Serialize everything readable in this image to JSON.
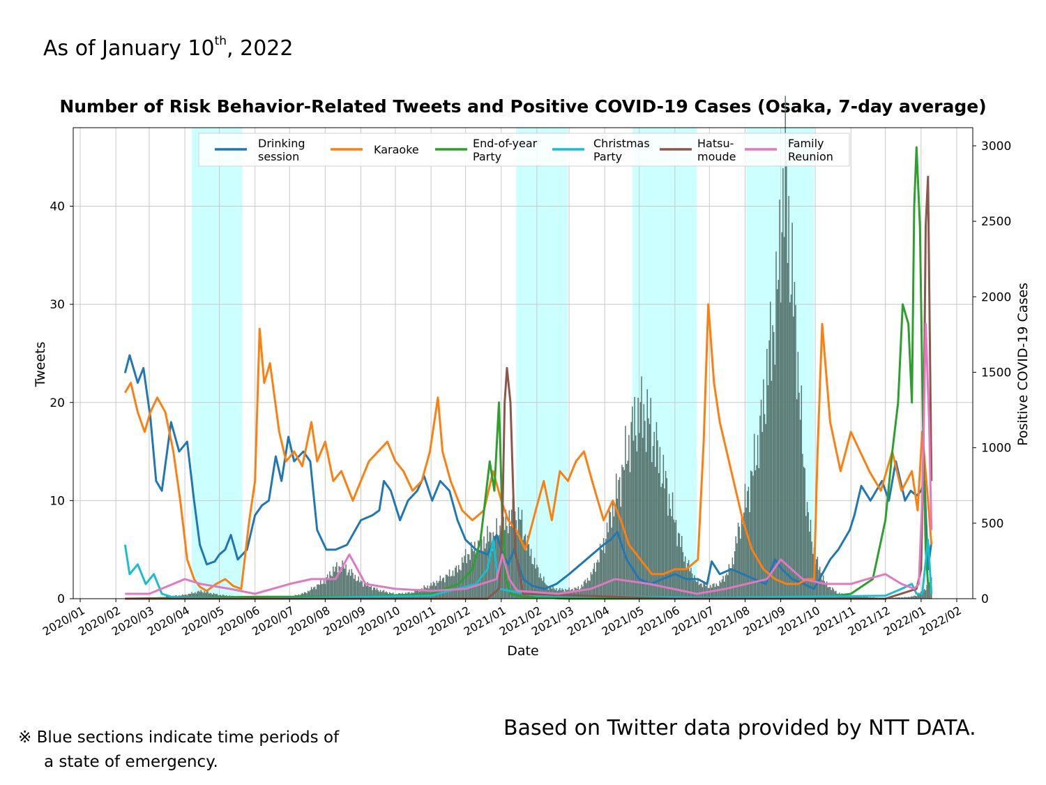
{
  "as_of": {
    "prefix": "As of January 10",
    "sup": "th",
    "suffix": ", 2022"
  },
  "note": {
    "mark": "※",
    "line1": "Blue sections indicate time periods of",
    "line2": "a state of emergency."
  },
  "credit": "Based on Twitter data provided by NTT DATA.",
  "colors": {
    "emergency_band": "#ccffff",
    "cases_bar": "#56756f",
    "grid": "#c8c8c8"
  },
  "chart_data": {
    "type": "line",
    "title": "Number of Risk Behavior-Related Tweets and Positive COVID-19 Cases (Osaka, 7-day average)",
    "xlabel": "Date",
    "ylabel": "Tweets",
    "y2label": "Positive COVID-19 Cases",
    "x_range": [
      "2020-01-01",
      "2022-02-01"
    ],
    "ylim": [
      0,
      48
    ],
    "y2lim": [
      0,
      3120
    ],
    "yticks": [
      0,
      10,
      20,
      30,
      40
    ],
    "y2ticks": [
      0,
      500,
      1000,
      1500,
      2000,
      2500,
      3000
    ],
    "x_tick_labels": [
      "2020/01",
      "2020/02",
      "2020/03",
      "2020/04",
      "2020/05",
      "2020/06",
      "2020/07",
      "2020/08",
      "2020/09",
      "2020/10",
      "2020/11",
      "2020/12",
      "2021/01",
      "2021/02",
      "2021/03",
      "2021/04",
      "2021/05",
      "2021/06",
      "2021/07",
      "2021/08",
      "2021/09",
      "2021/10",
      "2021/11",
      "2021/12",
      "2022/01",
      "2022/02"
    ],
    "x_tick_dates": [
      "2020-01-01",
      "2020-02-01",
      "2020-03-01",
      "2020-04-01",
      "2020-05-01",
      "2020-06-01",
      "2020-07-01",
      "2020-08-01",
      "2020-09-01",
      "2020-10-01",
      "2020-11-01",
      "2020-12-01",
      "2021-01-01",
      "2021-02-01",
      "2021-03-01",
      "2021-04-01",
      "2021-05-01",
      "2021-06-01",
      "2021-07-01",
      "2021-08-01",
      "2021-09-01",
      "2021-10-01",
      "2021-11-01",
      "2021-12-01",
      "2022-01-01",
      "2022-02-01"
    ],
    "grid": true,
    "legend_position": "top",
    "emergency_periods": [
      [
        "2020-04-07",
        "2020-05-21"
      ],
      [
        "2021-01-14",
        "2021-02-28"
      ],
      [
        "2021-04-25",
        "2021-06-20"
      ],
      [
        "2021-08-02",
        "2021-09-30"
      ]
    ],
    "series": [
      {
        "name": "Drinking session",
        "color": "#1f77b4",
        "x": [
          "2020-02-09",
          "2020-02-13",
          "2020-02-20",
          "2020-02-25",
          "2020-03-02",
          "2020-03-07",
          "2020-03-12",
          "2020-03-20",
          "2020-03-27",
          "2020-04-03",
          "2020-04-09",
          "2020-04-14",
          "2020-04-20",
          "2020-04-27",
          "2020-05-01",
          "2020-05-06",
          "2020-05-11",
          "2020-05-17",
          "2020-05-25",
          "2020-06-01",
          "2020-06-07",
          "2020-06-13",
          "2020-06-19",
          "2020-06-24",
          "2020-06-30",
          "2020-07-05",
          "2020-07-13",
          "2020-07-19",
          "2020-07-25",
          "2020-08-02",
          "2020-08-10",
          "2020-08-20",
          "2020-09-01",
          "2020-09-11",
          "2020-09-17",
          "2020-09-21",
          "2020-09-27",
          "2020-10-05",
          "2020-10-12",
          "2020-10-20",
          "2020-10-26",
          "2020-11-02",
          "2020-11-09",
          "2020-11-17",
          "2020-11-24",
          "2020-12-01",
          "2020-12-10",
          "2020-12-20",
          "2020-12-28",
          "2021-01-01",
          "2021-01-07",
          "2021-01-12",
          "2021-01-20",
          "2021-01-28",
          "2021-02-08",
          "2021-02-18",
          "2021-03-01",
          "2021-03-11",
          "2021-03-21",
          "2021-03-31",
          "2021-04-06",
          "2021-04-12",
          "2021-04-20",
          "2021-05-01",
          "2021-05-11",
          "2021-05-21",
          "2021-06-01",
          "2021-06-11",
          "2021-06-21",
          "2021-06-29",
          "2021-07-03",
          "2021-07-10",
          "2021-07-20",
          "2021-07-30",
          "2021-08-09",
          "2021-08-19",
          "2021-08-27",
          "2021-09-02",
          "2021-09-11",
          "2021-09-21",
          "2021-09-30",
          "2021-10-07",
          "2021-10-14",
          "2021-10-21",
          "2021-10-31",
          "2021-11-04",
          "2021-11-10",
          "2021-11-18",
          "2021-11-28",
          "2021-12-04",
          "2021-12-10",
          "2021-12-18",
          "2021-12-23",
          "2021-12-28",
          "2022-01-01",
          "2022-01-04",
          "2022-01-07",
          "2022-01-10"
        ],
        "values": [
          23,
          24.8,
          22,
          23.5,
          18.5,
          12,
          11,
          18,
          15,
          16,
          10,
          5.5,
          3.5,
          3.8,
          4.5,
          5,
          6.5,
          4,
          5,
          8.5,
          9.5,
          10,
          14.5,
          12,
          16.5,
          14,
          15,
          14,
          7,
          5,
          5,
          5.5,
          8,
          8.5,
          9,
          12,
          11,
          8,
          10,
          11,
          12.5,
          10,
          12,
          11,
          8,
          6,
          5,
          4.5,
          6.5,
          5,
          3.5,
          5,
          2,
          1.3,
          1,
          1.5,
          2.5,
          3.5,
          4.5,
          5.5,
          6,
          6.8,
          4,
          2,
          1.5,
          2,
          2.5,
          2,
          2,
          1.5,
          3.8,
          2.5,
          3,
          2.5,
          2,
          1.5,
          4,
          3,
          2,
          1.5,
          1,
          2.5,
          4,
          5,
          7,
          8.5,
          11.5,
          10,
          12,
          10,
          14,
          10,
          11,
          10.5,
          11,
          12,
          3,
          5.8
        ]
      },
      {
        "name": "Karaoke",
        "color": "#ff7f0e",
        "x": [
          "2020-02-09",
          "2020-02-14",
          "2020-02-20",
          "2020-02-26",
          "2020-03-02",
          "2020-03-08",
          "2020-03-15",
          "2020-03-22",
          "2020-03-28",
          "2020-04-03",
          "2020-04-09",
          "2020-04-14",
          "2020-04-20",
          "2020-04-28",
          "2020-05-06",
          "2020-05-13",
          "2020-05-20",
          "2020-05-27",
          "2020-06-01",
          "2020-06-05",
          "2020-06-09",
          "2020-06-14",
          "2020-06-22",
          "2020-06-28",
          "2020-07-05",
          "2020-07-12",
          "2020-07-20",
          "2020-07-25",
          "2020-08-01",
          "2020-08-08",
          "2020-08-15",
          "2020-08-25",
          "2020-09-01",
          "2020-09-08",
          "2020-09-16",
          "2020-09-24",
          "2020-10-01",
          "2020-10-08",
          "2020-10-16",
          "2020-10-24",
          "2020-10-31",
          "2020-11-07",
          "2020-11-11",
          "2020-11-18",
          "2020-11-28",
          "2020-12-07",
          "2020-12-17",
          "2020-12-25",
          "2021-01-01",
          "2021-01-07",
          "2021-01-14",
          "2021-01-22",
          "2021-01-31",
          "2021-02-07",
          "2021-02-14",
          "2021-02-21",
          "2021-02-28",
          "2021-03-07",
          "2021-03-14",
          "2021-03-21",
          "2021-03-31",
          "2021-04-08",
          "2021-04-15",
          "2021-04-22",
          "2021-05-02",
          "2021-05-12",
          "2021-05-22",
          "2021-06-01",
          "2021-06-11",
          "2021-06-21",
          "2021-06-26",
          "2021-06-30",
          "2021-07-05",
          "2021-07-10",
          "2021-07-16",
          "2021-07-22",
          "2021-07-30",
          "2021-08-07",
          "2021-08-17",
          "2021-08-27",
          "2021-09-06",
          "2021-09-16",
          "2021-09-24",
          "2021-09-30",
          "2021-10-03",
          "2021-10-07",
          "2021-10-14",
          "2021-10-23",
          "2021-11-01",
          "2021-11-09",
          "2021-11-17",
          "2021-11-27",
          "2021-12-07",
          "2021-12-15",
          "2021-12-24",
          "2021-12-29",
          "2022-01-02",
          "2022-01-07",
          "2022-01-10"
        ],
        "values": [
          21,
          22,
          19,
          17,
          19,
          20.5,
          19,
          15,
          10,
          4,
          2,
          1.2,
          0.8,
          1.5,
          2,
          1.3,
          1,
          8,
          12,
          27.5,
          22,
          24,
          17,
          14,
          15,
          13.5,
          18,
          14,
          16,
          12,
          13,
          10,
          12,
          14,
          15,
          16,
          14,
          13,
          11,
          12,
          15,
          20.5,
          15,
          12,
          9,
          8,
          9,
          13,
          10,
          8,
          7,
          5,
          9,
          12,
          8,
          13,
          12,
          14,
          15,
          12,
          8,
          10,
          8,
          5.5,
          4,
          2.5,
          2.5,
          3,
          3,
          4,
          16,
          30,
          22,
          18,
          15,
          12,
          8,
          5,
          3,
          2,
          1.5,
          1.5,
          2,
          2,
          15,
          28,
          18,
          13,
          17,
          15,
          13,
          11,
          15,
          11,
          13,
          9,
          17,
          10,
          5.5
        ]
      },
      {
        "name": "End-of-year Party",
        "color": "#2ca02c",
        "x": [
          "2020-02-09",
          "2020-06-01",
          "2020-09-01",
          "2020-11-01",
          "2020-11-25",
          "2020-12-07",
          "2020-12-14",
          "2020-12-18",
          "2020-12-22",
          "2020-12-26",
          "2020-12-30",
          "2021-01-02",
          "2021-01-05",
          "2021-01-09",
          "2021-01-20",
          "2021-03-01",
          "2021-07-01",
          "2021-10-01",
          "2021-11-01",
          "2021-11-20",
          "2021-12-01",
          "2021-12-07",
          "2021-12-12",
          "2021-12-16",
          "2021-12-21",
          "2021-12-24",
          "2021-12-26",
          "2021-12-28",
          "2021-12-31",
          "2022-01-03",
          "2022-01-05",
          "2022-01-07",
          "2022-01-10"
        ],
        "values": [
          0,
          0.2,
          0.2,
          0.5,
          1.5,
          3,
          6,
          10,
          14,
          11,
          20,
          8,
          2,
          0.5,
          0.2,
          0,
          0,
          0,
          0.5,
          2,
          8,
          15,
          20,
          30,
          28,
          20,
          40,
          46,
          38,
          15,
          5,
          1.5,
          1
        ]
      },
      {
        "name": "Christmas Party",
        "color": "#17becf",
        "x": [
          "2020-02-09",
          "2020-02-13",
          "2020-02-20",
          "2020-02-27",
          "2020-03-05",
          "2020-03-12",
          "2020-03-20",
          "2020-04-01",
          "2020-06-01",
          "2020-11-01",
          "2020-12-10",
          "2020-12-20",
          "2020-12-25",
          "2020-12-30",
          "2021-02-01",
          "2021-07-01",
          "2021-12-01",
          "2021-12-15",
          "2021-12-24",
          "2021-12-28",
          "2022-01-02",
          "2022-01-07",
          "2022-01-10"
        ],
        "values": [
          5.5,
          2.5,
          3.5,
          1.5,
          2.5,
          0.5,
          0.2,
          0.1,
          0,
          0.3,
          1.5,
          3,
          6,
          1,
          0.3,
          0.1,
          0.3,
          1,
          1.5,
          0.5,
          0.5,
          6,
          0.5
        ]
      },
      {
        "name": "Hatsu-moude",
        "color": "#8c564b",
        "x": [
          "2020-02-09",
          "2020-12-20",
          "2020-12-30",
          "2021-01-02",
          "2021-01-04",
          "2021-01-06",
          "2021-01-09",
          "2021-01-13",
          "2021-01-20",
          "2021-06-01",
          "2021-12-01",
          "2021-12-28",
          "2022-01-01",
          "2022-01-03",
          "2022-01-05",
          "2022-01-07",
          "2022-01-10"
        ],
        "values": [
          0,
          0,
          1,
          8,
          20,
          23.5,
          20,
          5,
          0.5,
          0,
          0,
          1,
          3,
          15,
          38,
          43,
          12
        ]
      },
      {
        "name": "Family Reunion",
        "color": "#e377c2",
        "x": [
          "2020-02-09",
          "2020-03-01",
          "2020-04-01",
          "2020-04-15",
          "2020-05-10",
          "2020-06-01",
          "2020-07-01",
          "2020-07-20",
          "2020-08-10",
          "2020-08-22",
          "2020-09-05",
          "2020-10-01",
          "2020-11-01",
          "2020-12-01",
          "2020-12-28",
          "2021-01-02",
          "2021-01-08",
          "2021-01-15",
          "2021-02-20",
          "2021-03-20",
          "2021-04-10",
          "2021-05-10",
          "2021-06-20",
          "2021-07-15",
          "2021-08-20",
          "2021-09-01",
          "2021-09-20",
          "2021-10-10",
          "2021-11-01",
          "2021-11-15",
          "2021-12-01",
          "2021-12-15",
          "2021-12-26",
          "2021-12-30",
          "2022-01-02",
          "2022-01-05",
          "2022-01-08",
          "2022-01-10"
        ],
        "values": [
          0.5,
          0.5,
          2,
          1.5,
          1,
          0.5,
          1.5,
          2,
          2,
          4.5,
          1.5,
          1,
          0.8,
          1,
          2,
          4.5,
          2,
          0.8,
          0.5,
          1,
          2,
          1.5,
          0.5,
          1,
          2,
          4,
          2,
          1.5,
          1.5,
          2,
          2.5,
          1.5,
          1,
          1.5,
          10,
          28,
          18,
          7
        ]
      },
      {
        "name": "Positive COVID-19 Cases",
        "axis": "right",
        "type": "bar",
        "color": "#56756f",
        "x": [
          "2020-02-09",
          "2020-03-01",
          "2020-04-01",
          "2020-04-15",
          "2020-05-01",
          "2020-06-01",
          "2020-07-01",
          "2020-07-15",
          "2020-08-01",
          "2020-08-08",
          "2020-08-15",
          "2020-08-22",
          "2020-09-01",
          "2020-09-15",
          "2020-10-01",
          "2020-10-15",
          "2020-11-01",
          "2020-11-15",
          "2020-11-25",
          "2020-12-01",
          "2020-12-10",
          "2020-12-20",
          "2020-12-28",
          "2021-01-05",
          "2021-01-10",
          "2021-01-18",
          "2021-01-25",
          "2021-02-01",
          "2021-02-10",
          "2021-02-20",
          "2021-03-01",
          "2021-03-10",
          "2021-03-20",
          "2021-03-25",
          "2021-04-01",
          "2021-04-05",
          "2021-04-10",
          "2021-04-15",
          "2021-04-20",
          "2021-04-25",
          "2021-05-01",
          "2021-05-05",
          "2021-05-10",
          "2021-05-20",
          "2021-06-01",
          "2021-06-10",
          "2021-06-20",
          "2021-07-01",
          "2021-07-10",
          "2021-07-20",
          "2021-07-25",
          "2021-08-01",
          "2021-08-08",
          "2021-08-15",
          "2021-08-22",
          "2021-08-29",
          "2021-09-02",
          "2021-09-05",
          "2021-09-10",
          "2021-09-15",
          "2021-09-20",
          "2021-09-25",
          "2021-10-01",
          "2021-10-10",
          "2021-10-20",
          "2021-11-01",
          "2021-12-01",
          "2021-12-20",
          "2021-12-28",
          "2022-01-01",
          "2022-01-04",
          "2022-01-07",
          "2022-01-10"
        ],
        "values": [
          2,
          3,
          25,
          50,
          25,
          3,
          10,
          40,
          120,
          190,
          220,
          180,
          110,
          60,
          30,
          40,
          90,
          150,
          200,
          280,
          340,
          400,
          430,
          500,
          560,
          520,
          330,
          200,
          80,
          60,
          60,
          70,
          150,
          240,
          380,
          520,
          650,
          800,
          960,
          1120,
          1220,
          1240,
          1160,
          880,
          510,
          260,
          110,
          80,
          100,
          210,
          400,
          620,
          850,
          1150,
          1600,
          2000,
          2580,
          2810,
          2200,
          1700,
          1000,
          520,
          270,
          100,
          40,
          15,
          5,
          10,
          20,
          40,
          60,
          100,
          150
        ]
      }
    ]
  }
}
